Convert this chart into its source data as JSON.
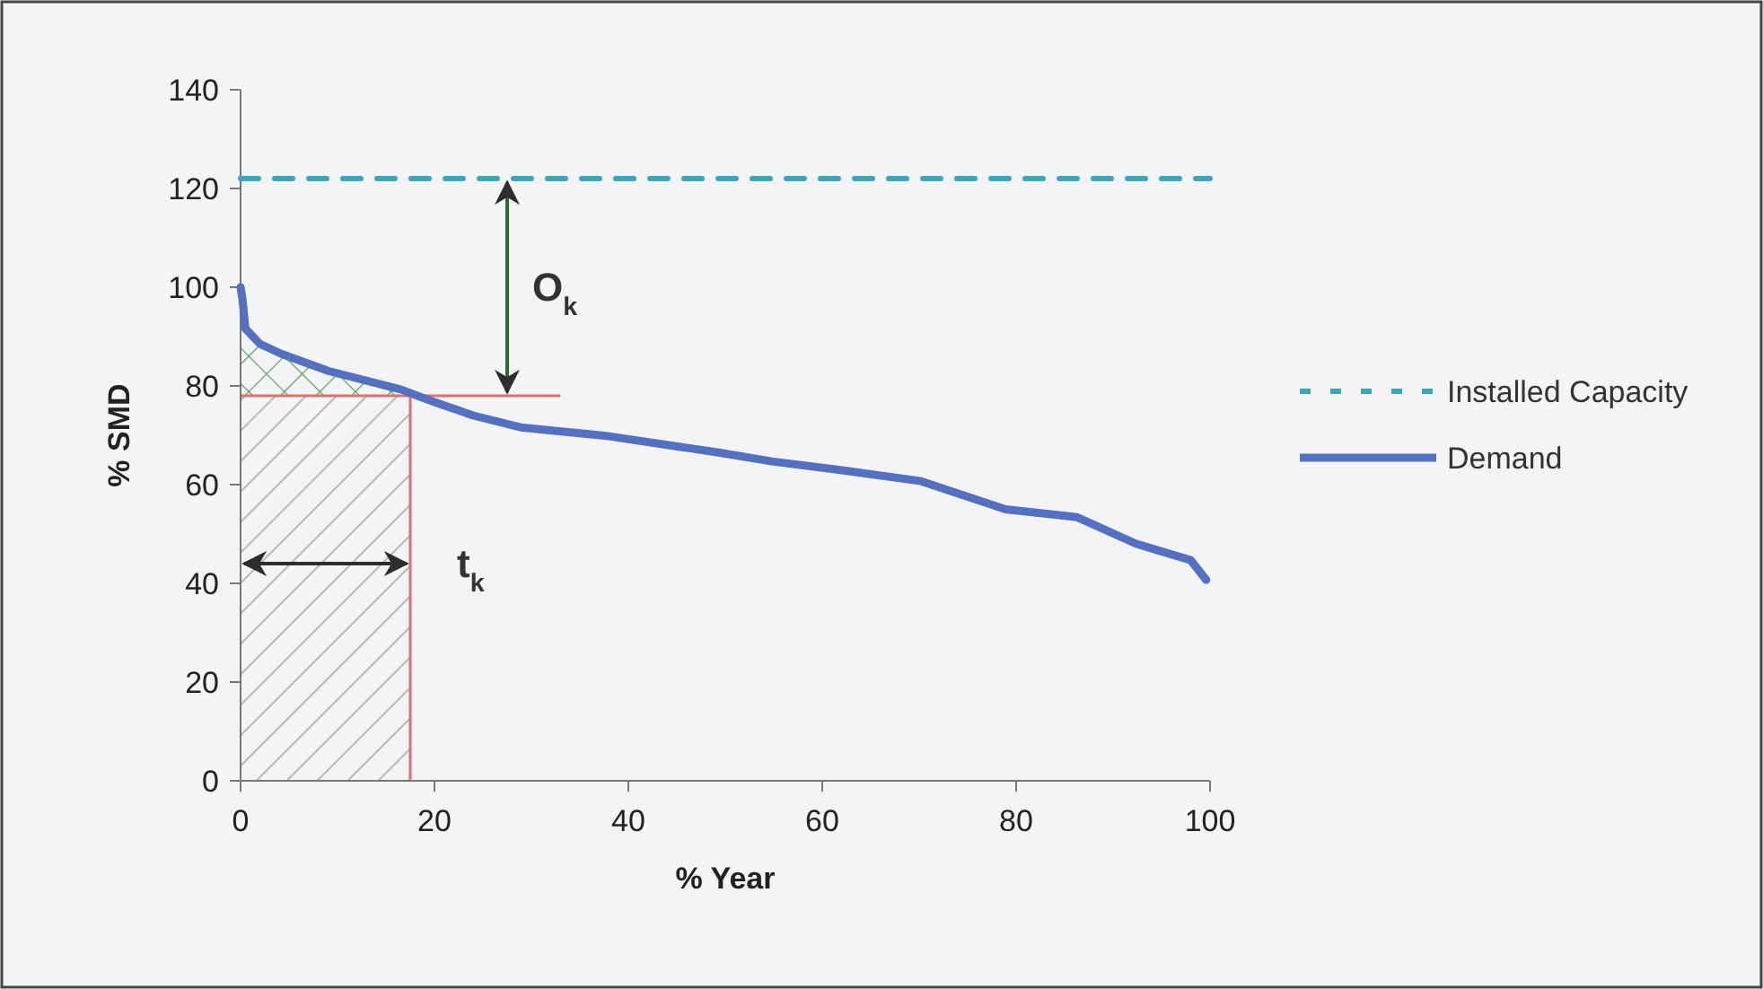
{
  "chart_data": {
    "type": "line",
    "xlabel": "% Year",
    "ylabel": "% SMD",
    "xlim": [
      0,
      100
    ],
    "ylim": [
      0,
      140
    ],
    "xticks": [
      0,
      20,
      40,
      60,
      80,
      100
    ],
    "yticks": [
      0,
      20,
      40,
      60,
      80,
      100,
      120,
      140
    ],
    "grid": false,
    "legend": "right",
    "marker": "none",
    "series": [
      {
        "name": "Installed Capacity",
        "color": "#3aa6b9",
        "line_style": "dashed",
        "x": [
          0,
          100
        ],
        "values": [
          122,
          122
        ]
      },
      {
        "name": "Demand",
        "color": "#5470c0",
        "line_style": "solid",
        "x": [
          0,
          0.2,
          0.5,
          2,
          4.2,
          9.1,
          16.5,
          19.6,
          24,
          28.9,
          38,
          49.3,
          54.8,
          61.7,
          70.2,
          78.9,
          86.3,
          92.4,
          98,
          99.6
        ],
        "values": [
          100,
          97.5,
          91.6,
          88.5,
          86.5,
          83,
          79.3,
          77,
          74,
          71.6,
          69.8,
          66.5,
          64.7,
          63,
          60.7,
          55,
          53.4,
          48,
          44.7,
          40.7
        ]
      }
    ],
    "ref_lines": [
      {
        "axis": "y",
        "value": 78,
        "color": "#d9736b"
      },
      {
        "axis": "x",
        "value": 17.5,
        "color": "#d9736b"
      }
    ],
    "bands": [
      {
        "axis": "x",
        "from": 0,
        "to": 17.5,
        "color": "#b8b8b8"
      }
    ],
    "annotations": [
      "O$_{k}$",
      {
        "text": "t$_{k}$",
        "x": 17.5,
        "y": 44
      }
    ]
  }
}
